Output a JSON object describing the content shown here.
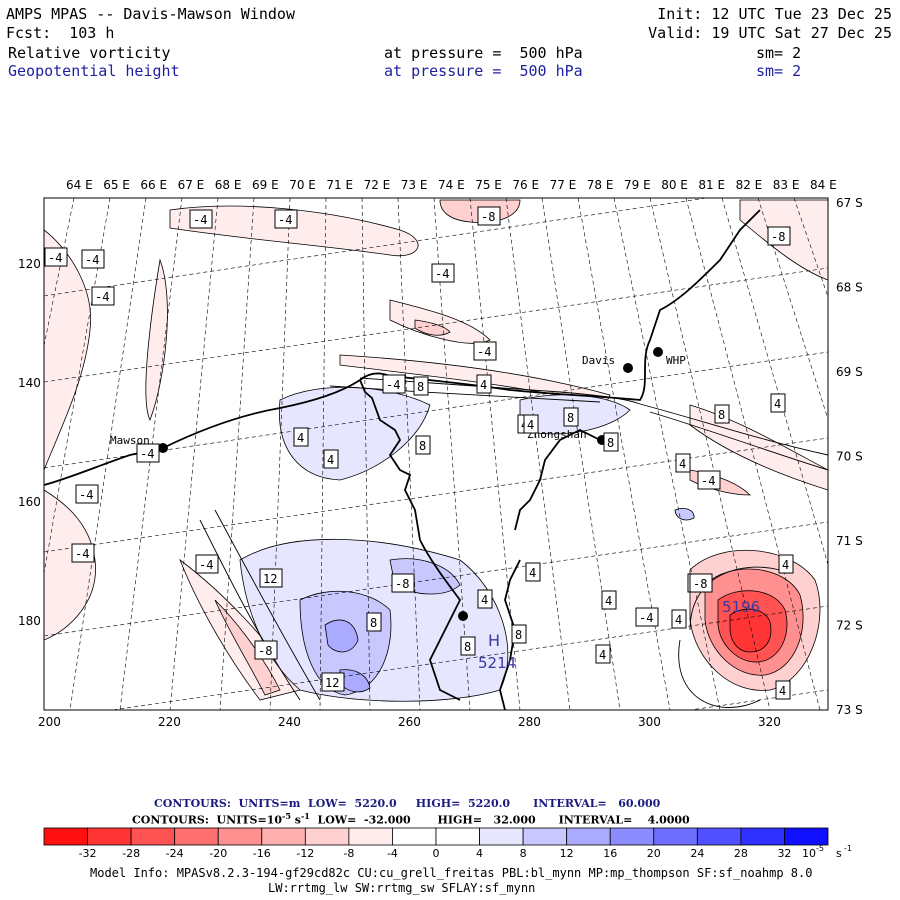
{
  "header": {
    "line1_left": "AMPS MPAS -- Davis-Mawson Window",
    "line1_right": "Init: 12 UTC Tue 23 Dec 25",
    "line2_left": "Fcst:  103 h",
    "line2_right": "Valid: 19 UTC Sat 27 Dec 25",
    "field1": {
      "name": "Relative vorticity",
      "level": "at pressure =  500 hPa",
      "sm": "sm= 2"
    },
    "field2": {
      "name": "Geopotential height",
      "level": "at pressure =  500 hPa",
      "sm": "sm= 2"
    }
  },
  "map": {
    "lon_labels": [
      "64 E",
      "65 E",
      "66 E",
      "67 E",
      "68 E",
      "69 E",
      "70 E",
      "71 E",
      "72 E",
      "73 E",
      "74 E",
      "75 E",
      "76 E",
      "77 E",
      "78 E",
      "79 E",
      "80 E",
      "81 E",
      "82 E",
      "83 E",
      "84 E"
    ],
    "lat_labels": [
      "67 S",
      "68 S",
      "69 S",
      "70 S",
      "71 S",
      "72 S",
      "73 S"
    ],
    "x_ticks": [
      "200",
      "220",
      "240",
      "260",
      "280",
      "300",
      "320"
    ],
    "y_ticks": [
      "120",
      "140",
      "160",
      "180"
    ],
    "stations": [
      {
        "name": "Davis"
      },
      {
        "name": "WHP"
      },
      {
        "name": "Mawson"
      },
      {
        "name": "Zhongshan"
      }
    ],
    "high_center": {
      "symbol": "H",
      "value": "5214"
    },
    "low_value": "5196",
    "contour_labels": [
      "-4",
      "-4",
      "-8",
      "-4",
      "-4",
      "-4",
      "-4",
      "-4",
      "-4",
      "-8",
      "-4",
      "4",
      "8",
      "4",
      "4",
      "8",
      "8",
      "4",
      "8",
      "4",
      "8",
      "-4",
      "-4",
      "-4",
      "4",
      "-4",
      "-4",
      "-8",
      "-8",
      "12",
      "8",
      "4",
      "8",
      "8",
      "4",
      "4",
      "4",
      "12",
      "8",
      "4",
      "4",
      "-4",
      "4",
      "-8",
      "-4",
      "4",
      "4"
    ]
  },
  "contours_text": {
    "line1": "CONTOURS:  UNITS=m  LOW=  5220.0     HIGH=  5220.0      INTERVAL=   60.000",
    "line2_prefix": "CONTOURS:  UNITS=10",
    "line2_sup": "-5",
    "line2_unit": " s",
    "line2_sup2": "-1",
    "line2_suffix": "  LOW=  -32.000       HIGH=   32.000      INTERVAL=    4.0000"
  },
  "colorbar": {
    "colors": [
      "#ff1010",
      "#ff3434",
      "#ff5252",
      "#ff7070",
      "#ff9090",
      "#ffb0b0",
      "#ffd0d0",
      "#ffeded",
      "#ffffff",
      "#ffffff",
      "#e6e6ff",
      "#c8c8ff",
      "#aaaaff",
      "#8c8cff",
      "#6e6eff",
      "#5050ff",
      "#3030ff",
      "#1010ff"
    ],
    "labels": [
      "-32",
      "-28",
      "-24",
      "-20",
      "-16",
      "-12",
      "-8",
      "-4",
      "0",
      "4",
      "8",
      "12",
      "16",
      "20",
      "24",
      "28",
      "32"
    ],
    "unit_base": "10",
    "unit_exp": "-5",
    "unit_s": "s",
    "unit_s_exp": "-1"
  },
  "model_info": {
    "line1": "Model Info: MPASv8.2.3-194-gf29cd82c CU:cu_grell_freitas PBL:bl_mynn MP:mp_thompson SF:sf_noahmp 8.0",
    "line2": "LW:rrtmg_lw SW:rrtmg_sw SFLAY:sf_mynn"
  }
}
